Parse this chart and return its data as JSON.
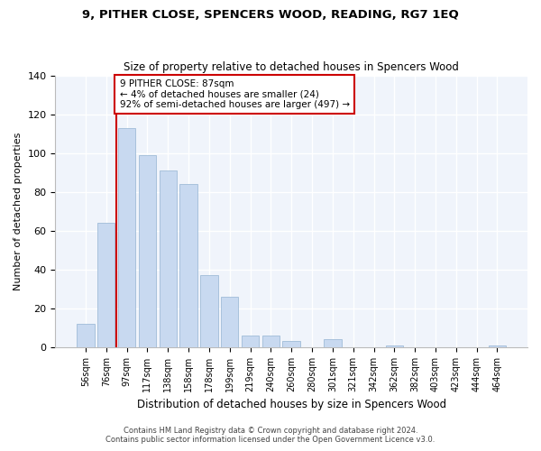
{
  "title": "9, PITHER CLOSE, SPENCERS WOOD, READING, RG7 1EQ",
  "subtitle": "Size of property relative to detached houses in Spencers Wood",
  "xlabel": "Distribution of detached houses by size in Spencers Wood",
  "ylabel": "Number of detached properties",
  "bar_labels": [
    "56sqm",
    "76sqm",
    "97sqm",
    "117sqm",
    "138sqm",
    "158sqm",
    "178sqm",
    "199sqm",
    "219sqm",
    "240sqm",
    "260sqm",
    "280sqm",
    "301sqm",
    "321sqm",
    "342sqm",
    "362sqm",
    "382sqm",
    "403sqm",
    "423sqm",
    "444sqm",
    "464sqm"
  ],
  "bar_values": [
    12,
    64,
    113,
    99,
    91,
    84,
    37,
    26,
    6,
    6,
    3,
    0,
    4,
    0,
    0,
    1,
    0,
    0,
    0,
    0,
    1
  ],
  "bar_color": "#c8d9f0",
  "bar_edge_color": "#a0bcd8",
  "vline_color": "#cc0000",
  "annotation_title": "9 PITHER CLOSE: 87sqm",
  "annotation_line1": "← 4% of detached houses are smaller (24)",
  "annotation_line2": "92% of semi-detached houses are larger (497) →",
  "annotation_box_color": "#ffffff",
  "annotation_box_edge": "#cc0000",
  "ylim": [
    0,
    140
  ],
  "yticks": [
    0,
    20,
    40,
    60,
    80,
    100,
    120,
    140
  ],
  "footer1": "Contains HM Land Registry data © Crown copyright and database right 2024.",
  "footer2": "Contains public sector information licensed under the Open Government Licence v3.0.",
  "bg_color": "#e8eef8"
}
